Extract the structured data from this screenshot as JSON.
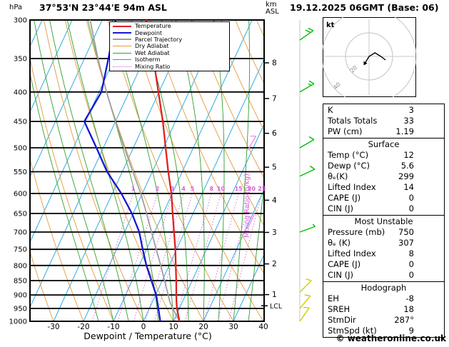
{
  "header": {
    "pressure_unit": "hPa",
    "station": "37°53'N 23°44'E 94m ASL",
    "km_label": "km",
    "asl_label": "ASL",
    "datetime": "19.12.2025 06GMT (Base: 06)"
  },
  "footer": {
    "copyright": "© weatheronline.co.uk"
  },
  "legend": {
    "entries": [
      {
        "key": "temperature",
        "label": "Temperature",
        "color": "#e02020",
        "width": 2.5,
        "dotted": false
      },
      {
        "key": "dewpoint",
        "label": "Dewpoint",
        "color": "#1616d2",
        "width": 2.5,
        "dotted": false
      },
      {
        "key": "parcel",
        "label": "Parcel Trajectory",
        "color": "#9e9e9e",
        "width": 2,
        "dotted": false
      },
      {
        "key": "dry_adiabat",
        "label": "Dry Adiabat",
        "color": "#e39b3b",
        "width": 1,
        "dotted": false
      },
      {
        "key": "wet_adiabat",
        "label": "Wet Adiabat",
        "color": "#2fa12f",
        "width": 1,
        "dotted": false
      },
      {
        "key": "isotherm",
        "label": "Isotherm",
        "color": "#1ba4e0",
        "width": 1,
        "dotted": false
      },
      {
        "key": "mixing_ratio",
        "label": "Mixing Ratio",
        "color": "#d95fd9",
        "width": 1,
        "dotted": true
      }
    ]
  },
  "hodograph": {
    "unit": "kt",
    "ring_labels": [
      "20",
      "40"
    ]
  },
  "stats": {
    "sections": [
      {
        "title": "",
        "rows": [
          [
            "K",
            "3"
          ],
          [
            "Totals Totals",
            "33"
          ],
          [
            "PW (cm)",
            "1.19"
          ]
        ]
      },
      {
        "title": "Surface",
        "rows": [
          [
            "Temp (°C)",
            "12"
          ],
          [
            "Dewp (°C)",
            "5.6"
          ],
          [
            "θₑ(K)",
            "299"
          ],
          [
            "Lifted Index",
            "14"
          ],
          [
            "CAPE (J)",
            "0"
          ],
          [
            "CIN (J)",
            "0"
          ]
        ]
      },
      {
        "title": "Most Unstable",
        "rows": [
          [
            "Pressure (mb)",
            "750"
          ],
          [
            "θₑ (K)",
            "307"
          ],
          [
            "Lifted Index",
            "8"
          ],
          [
            "CAPE (J)",
            "0"
          ],
          [
            "CIN (J)",
            "0"
          ]
        ]
      },
      {
        "title": "Hodograph",
        "rows": [
          [
            "EH",
            "-8"
          ],
          [
            "SREH",
            "18"
          ],
          [
            "StmDir",
            "287°"
          ],
          [
            "StmSpd (kt)",
            "9"
          ]
        ]
      }
    ]
  },
  "chart_data": {
    "type": "line",
    "title": "Skew-T log-P sounding 37°53'N 23°44'E 94m ASL 19.12.2025 06GMT",
    "xlabel": "Dewpoint / Temperature (°C)",
    "ylabel": "hPa",
    "x_range": [
      -40,
      40
    ],
    "pressure_range": [
      300,
      1000
    ],
    "x_ticks": [
      -30,
      -20,
      -10,
      0,
      10,
      20,
      30,
      40
    ],
    "pressure_ticks": [
      300,
      350,
      400,
      450,
      500,
      550,
      600,
      650,
      700,
      750,
      800,
      850,
      900,
      950,
      1000
    ],
    "km_ticks": [
      1,
      2,
      3,
      4,
      5,
      6,
      7,
      8
    ],
    "mixing_ratio_label": "Mixing Ratio (g/kg)",
    "mixing_ratio_values": [
      1,
      2,
      3,
      4,
      5,
      8,
      10,
      15,
      20,
      25
    ],
    "lcl": {
      "label": "LCL",
      "pressure": 940
    },
    "series": [
      {
        "name": "Temperature",
        "pressure": [
          1000,
          950,
          925,
          900,
          850,
          800,
          750,
          700,
          650,
          600,
          550,
          500,
          450,
          400,
          350,
          300
        ],
        "temp_c": [
          12,
          9.2,
          8,
          6.9,
          4.7,
          2.2,
          -0.4,
          -3.5,
          -6.8,
          -10.3,
          -14.7,
          -19.2,
          -24.2,
          -30.2,
          -37,
          -45.3
        ]
      },
      {
        "name": "Dewpoint",
        "pressure": [
          1000,
          950,
          900,
          850,
          800,
          750,
          700,
          650,
          600,
          550,
          500,
          450,
          400,
          350,
          300
        ],
        "temp_c": [
          5.6,
          3,
          0.2,
          -3.6,
          -7.6,
          -11.3,
          -15.1,
          -20.4,
          -27,
          -35.1,
          -42.3,
          -50.4,
          -49.2,
          -52,
          -55.5
        ]
      },
      {
        "name": "Parcel Trajectory",
        "pressure": [
          1000,
          950,
          925,
          900,
          850,
          800,
          750,
          700,
          650,
          600,
          550,
          500,
          450,
          400,
          350,
          300
        ],
        "temp_c": [
          12,
          7.8,
          5.8,
          4.2,
          0.8,
          -2.8,
          -6.8,
          -11,
          -15.5,
          -20.5,
          -26.5,
          -33,
          -40,
          -47.5,
          -55.5,
          -64
        ]
      }
    ],
    "wind_barbs": [
      {
        "pressure": 325,
        "speed_kt": 20,
        "dir_deg": 55,
        "color": "#00bd00",
        "column": "right"
      },
      {
        "pressure": 400,
        "speed_kt": 15,
        "dir_deg": 60,
        "color": "#00bd00",
        "column": "right"
      },
      {
        "pressure": 500,
        "speed_kt": 10,
        "dir_deg": 60,
        "color": "#00bd00",
        "column": "right"
      },
      {
        "pressure": 560,
        "speed_kt": 10,
        "dir_deg": 65,
        "color": "#00bd00",
        "column": "right"
      },
      {
        "pressure": 700,
        "speed_kt": 5,
        "dir_deg": 70,
        "color": "#00bd00",
        "column": "right"
      },
      {
        "pressure": 505,
        "speed_kt": 10,
        "dir_deg": 30,
        "color": "#ef8fef",
        "column": "inner"
      },
      {
        "pressure": 690,
        "speed_kt": 10,
        "dir_deg": 25,
        "color": "#ef8fef",
        "column": "inner"
      },
      {
        "pressure": 890,
        "speed_kt": 10,
        "dir_deg": 45,
        "color": "#cfcf00",
        "column": "right"
      },
      {
        "pressure": 950,
        "speed_kt": 10,
        "dir_deg": 40,
        "color": "#cfcf00",
        "column": "right"
      },
      {
        "pressure": 1000,
        "speed_kt": 10,
        "dir_deg": 35,
        "color": "#cfcf00",
        "column": "right"
      }
    ],
    "hodograph_trace_kt": [
      [
        -3,
        -5
      ],
      [
        0,
        0
      ],
      [
        5,
        3
      ],
      [
        10,
        0
      ],
      [
        14,
        -3
      ]
    ]
  }
}
